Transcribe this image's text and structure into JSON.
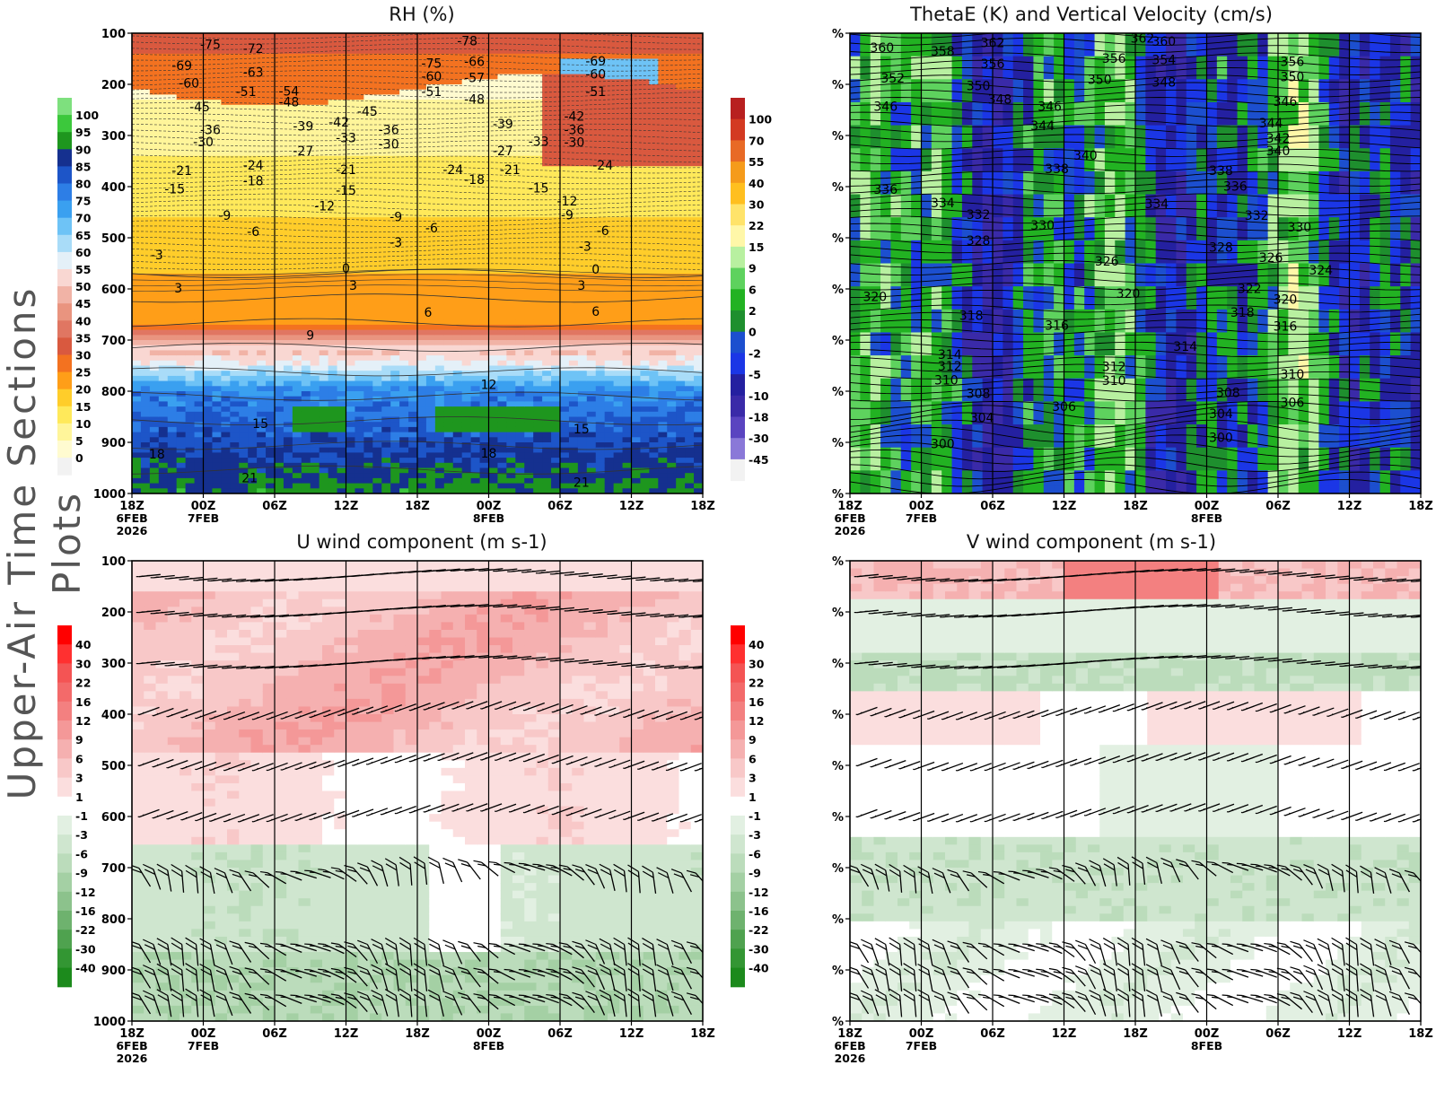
{
  "page": {
    "side_title": "Upper-Air Time Sections Plots"
  },
  "chart_data": [
    {
      "id": "rh",
      "type": "heatmap",
      "title": "RH (%)",
      "y_ticks": [
        "100",
        "200",
        "300",
        "400",
        "500",
        "600",
        "700",
        "800",
        "900",
        "1000"
      ],
      "x_ticks": [
        "18Z",
        "00Z",
        "06Z",
        "12Z",
        "18Z",
        "00Z",
        "06Z",
        "12Z",
        "18Z"
      ],
      "x_date_labels": [
        {
          "tick": 0,
          "lines": [
            "6FEB",
            "2026"
          ]
        },
        {
          "tick": 1,
          "lines": [
            "7FEB"
          ]
        },
        {
          "tick": 5,
          "lines": [
            "8FEB"
          ]
        }
      ],
      "colorbar": {
        "labels": [
          "100",
          "95",
          "90",
          "85",
          "80",
          "75",
          "70",
          "65",
          "60",
          "55",
          "50",
          "45",
          "40",
          "35",
          "30",
          "25",
          "20",
          "15",
          "10",
          "5",
          "0"
        ],
        "colors": [
          "#7ee07e",
          "#3cc83c",
          "#1e961e",
          "#15308f",
          "#1d55c8",
          "#2d7ee6",
          "#3aa0f0",
          "#6ec3f6",
          "#a9dcf8",
          "#e4f0f8",
          "#f9d7d2",
          "#f1b3a6",
          "#e9947f",
          "#e07662",
          "#d9593f",
          "#f37220",
          "#ff9e18",
          "#ffcd2a",
          "#ffe95a",
          "#fff59a",
          "#fffbd0",
          "#f2f2f2"
        ]
      },
      "contour_labels": [
        {
          "t": 0.7,
          "p": 163,
          "v": "-69"
        },
        {
          "t": 1.1,
          "p": 122,
          "v": "-75"
        },
        {
          "t": 1.7,
          "p": 130,
          "v": "-72"
        },
        {
          "t": 0.8,
          "p": 197,
          "v": "-60"
        },
        {
          "t": 1.7,
          "p": 176,
          "v": "-63"
        },
        {
          "t": 1.6,
          "p": 214,
          "v": "-51"
        },
        {
          "t": 2.2,
          "p": 213,
          "v": "-54"
        },
        {
          "t": 2.2,
          "p": 234,
          "v": "-48"
        },
        {
          "t": 0.95,
          "p": 244,
          "v": "-45"
        },
        {
          "t": 1.1,
          "p": 289,
          "v": "-36"
        },
        {
          "t": 1.0,
          "p": 312,
          "v": "-30"
        },
        {
          "t": 2.4,
          "p": 282,
          "v": "-39"
        },
        {
          "t": 2.9,
          "p": 274,
          "v": "-42"
        },
        {
          "t": 3.3,
          "p": 253,
          "v": "-45"
        },
        {
          "t": 3.0,
          "p": 304,
          "v": "-33"
        },
        {
          "t": 3.6,
          "p": 289,
          "v": "-36"
        },
        {
          "t": 3.6,
          "p": 317,
          "v": "-30"
        },
        {
          "t": 2.4,
          "p": 330,
          "v": "-27"
        },
        {
          "t": 0.7,
          "p": 368,
          "v": "-21"
        },
        {
          "t": 1.7,
          "p": 358,
          "v": "-24"
        },
        {
          "t": 1.7,
          "p": 389,
          "v": "-18"
        },
        {
          "t": 0.6,
          "p": 404,
          "v": "-15"
        },
        {
          "t": 3.0,
          "p": 367,
          "v": "-21"
        },
        {
          "t": 3.0,
          "p": 407,
          "v": "-15"
        },
        {
          "t": 2.7,
          "p": 438,
          "v": "-12"
        },
        {
          "t": 1.3,
          "p": 456,
          "v": "-9"
        },
        {
          "t": 1.7,
          "p": 488,
          "v": "-6"
        },
        {
          "t": 0.35,
          "p": 533,
          "v": "-3"
        },
        {
          "t": 3.7,
          "p": 459,
          "v": "-9"
        },
        {
          "t": 4.2,
          "p": 481,
          "v": "-6"
        },
        {
          "t": 3.7,
          "p": 509,
          "v": "-3"
        },
        {
          "t": 4.2,
          "p": 159,
          "v": "-75"
        },
        {
          "t": 4.7,
          "p": 115,
          "v": "-78"
        },
        {
          "t": 4.8,
          "p": 155,
          "v": "-66"
        },
        {
          "t": 4.2,
          "p": 184,
          "v": "-60"
        },
        {
          "t": 4.8,
          "p": 187,
          "v": "-57"
        },
        {
          "t": 4.2,
          "p": 214,
          "v": "-51"
        },
        {
          "t": 4.8,
          "p": 229,
          "v": "-48"
        },
        {
          "t": 4.5,
          "p": 367,
          "v": "-24"
        },
        {
          "t": 4.8,
          "p": 386,
          "v": "-18"
        },
        {
          "t": 5.2,
          "p": 277,
          "v": "-39"
        },
        {
          "t": 5.2,
          "p": 330,
          "v": "-27"
        },
        {
          "t": 5.3,
          "p": 367,
          "v": "-21"
        },
        {
          "t": 5.7,
          "p": 311,
          "v": "-33"
        },
        {
          "t": 5.7,
          "p": 403,
          "v": "-15"
        },
        {
          "t": 6.1,
          "p": 428,
          "v": "-12"
        },
        {
          "t": 6.1,
          "p": 455,
          "v": "-9"
        },
        {
          "t": 6.2,
          "p": 262,
          "v": "-42"
        },
        {
          "t": 6.2,
          "p": 289,
          "v": "-36"
        },
        {
          "t": 6.2,
          "p": 313,
          "v": "-30"
        },
        {
          "t": 6.6,
          "p": 358,
          "v": "-24"
        },
        {
          "t": 6.5,
          "p": 154,
          "v": "-69"
        },
        {
          "t": 6.5,
          "p": 180,
          "v": "-60"
        },
        {
          "t": 6.5,
          "p": 214,
          "v": "-51"
        },
        {
          "t": 6.6,
          "p": 486,
          "v": "-6"
        },
        {
          "t": 6.35,
          "p": 517,
          "v": "-3"
        },
        {
          "t": 6.5,
          "p": 561,
          "v": "0"
        },
        {
          "t": 3.0,
          "p": 560,
          "v": "0"
        },
        {
          "t": 0.65,
          "p": 598,
          "v": "3"
        },
        {
          "t": 3.1,
          "p": 593,
          "v": "3"
        },
        {
          "t": 6.3,
          "p": 593,
          "v": "3"
        },
        {
          "t": 4.15,
          "p": 646,
          "v": "6"
        },
        {
          "t": 6.5,
          "p": 644,
          "v": "6"
        },
        {
          "t": 2.5,
          "p": 690,
          "v": "9"
        },
        {
          "t": 5.0,
          "p": 787,
          "v": "12"
        },
        {
          "t": 1.8,
          "p": 863,
          "v": "15"
        },
        {
          "t": 6.3,
          "p": 874,
          "v": "15"
        },
        {
          "t": 0.35,
          "p": 923,
          "v": "18"
        },
        {
          "t": 5.0,
          "p": 921,
          "v": "18"
        },
        {
          "t": 1.65,
          "p": 969,
          "v": "21"
        },
        {
          "t": 6.3,
          "p": 978,
          "v": "21"
        }
      ]
    },
    {
      "id": "thetae",
      "type": "heatmap",
      "title": "ThetaE (K) and Vertical Velocity (cm/s)",
      "y_tick_label": "%",
      "x_ticks": [
        "18Z",
        "00Z",
        "06Z",
        "12Z",
        "18Z",
        "00Z",
        "06Z",
        "12Z",
        "18Z"
      ],
      "x_date_labels": [
        {
          "tick": 0,
          "lines": [
            "6FEB",
            "2026"
          ]
        },
        {
          "tick": 1,
          "lines": [
            "7FEB"
          ]
        },
        {
          "tick": 5,
          "lines": [
            "8FEB"
          ]
        }
      ],
      "colorbar": {
        "labels": [
          "100",
          "70",
          "55",
          "40",
          "30",
          "22",
          "15",
          "9",
          "6",
          "2",
          "0",
          "-2",
          "-5",
          "-10",
          "-18",
          "-30",
          "-45"
        ],
        "colors": [
          "#b82020",
          "#d33a22",
          "#e86a26",
          "#f59b1b",
          "#ffbf1f",
          "#ffe36a",
          "#fff7a8",
          "#b8f0a0",
          "#5ed25e",
          "#22b222",
          "#1e8f2e",
          "#1c4fcf",
          "#1b36e6",
          "#2420a0",
          "#3a2aa8",
          "#5a44c0",
          "#8a78d8",
          "#f2f2f2"
        ]
      },
      "contour_labels": [
        {
          "t": 0.45,
          "p": 128,
          "v": "360"
        },
        {
          "t": 1.3,
          "p": 135,
          "v": "358"
        },
        {
          "t": 2.0,
          "p": 118,
          "v": "362"
        },
        {
          "t": 2.0,
          "p": 160,
          "v": "356"
        },
        {
          "t": 0.6,
          "p": 188,
          "v": "352"
        },
        {
          "t": 1.8,
          "p": 203,
          "v": "350"
        },
        {
          "t": 2.1,
          "p": 229,
          "v": "348"
        },
        {
          "t": 0.5,
          "p": 243,
          "v": "346"
        },
        {
          "t": 2.8,
          "p": 243,
          "v": "346"
        },
        {
          "t": 2.7,
          "p": 281,
          "v": "344"
        },
        {
          "t": 4.1,
          "p": 110,
          "v": "362"
        },
        {
          "t": 4.4,
          "p": 116,
          "v": "360"
        },
        {
          "t": 4.4,
          "p": 152,
          "v": "354"
        },
        {
          "t": 4.4,
          "p": 196,
          "v": "348"
        },
        {
          "t": 3.7,
          "p": 149,
          "v": "356"
        },
        {
          "t": 3.5,
          "p": 190,
          "v": "350"
        },
        {
          "t": 6.2,
          "p": 155,
          "v": "356"
        },
        {
          "t": 6.2,
          "p": 185,
          "v": "350"
        },
        {
          "t": 6.1,
          "p": 233,
          "v": "346"
        },
        {
          "t": 5.9,
          "p": 275,
          "v": "344"
        },
        {
          "t": 6.0,
          "p": 305,
          "v": "342"
        },
        {
          "t": 6.0,
          "p": 330,
          "v": "340"
        },
        {
          "t": 3.3,
          "p": 339,
          "v": "340"
        },
        {
          "t": 2.9,
          "p": 365,
          "v": "338"
        },
        {
          "t": 5.2,
          "p": 368,
          "v": "338"
        },
        {
          "t": 5.4,
          "p": 399,
          "v": "336"
        },
        {
          "t": 0.5,
          "p": 405,
          "v": "336"
        },
        {
          "t": 1.3,
          "p": 432,
          "v": "334"
        },
        {
          "t": 1.8,
          "p": 454,
          "v": "332"
        },
        {
          "t": 2.7,
          "p": 475,
          "v": "330"
        },
        {
          "t": 4.3,
          "p": 433,
          "v": "334"
        },
        {
          "t": 5.7,
          "p": 456,
          "v": "332"
        },
        {
          "t": 6.3,
          "p": 479,
          "v": "330"
        },
        {
          "t": 1.8,
          "p": 505,
          "v": "328"
        },
        {
          "t": 3.6,
          "p": 546,
          "v": "326"
        },
        {
          "t": 5.2,
          "p": 518,
          "v": "328"
        },
        {
          "t": 5.9,
          "p": 539,
          "v": "326"
        },
        {
          "t": 6.6,
          "p": 563,
          "v": "324"
        },
        {
          "t": 5.6,
          "p": 599,
          "v": "322"
        },
        {
          "t": 0.35,
          "p": 615,
          "v": "320"
        },
        {
          "t": 3.9,
          "p": 609,
          "v": "320"
        },
        {
          "t": 6.1,
          "p": 620,
          "v": "320"
        },
        {
          "t": 1.7,
          "p": 652,
          "v": "318"
        },
        {
          "t": 5.5,
          "p": 646,
          "v": "318"
        },
        {
          "t": 2.9,
          "p": 671,
          "v": "316"
        },
        {
          "t": 6.1,
          "p": 673,
          "v": "316"
        },
        {
          "t": 4.7,
          "p": 712,
          "v": "314"
        },
        {
          "t": 1.4,
          "p": 728,
          "v": "314"
        },
        {
          "t": 1.4,
          "p": 751,
          "v": "312"
        },
        {
          "t": 3.7,
          "p": 752,
          "v": "312"
        },
        {
          "t": 1.35,
          "p": 778,
          "v": "310"
        },
        {
          "t": 3.7,
          "p": 779,
          "v": "310"
        },
        {
          "t": 6.2,
          "p": 767,
          "v": "310"
        },
        {
          "t": 1.8,
          "p": 804,
          "v": "308"
        },
        {
          "t": 5.3,
          "p": 803,
          "v": "308"
        },
        {
          "t": 3.0,
          "p": 830,
          "v": "306"
        },
        {
          "t": 6.2,
          "p": 822,
          "v": "306"
        },
        {
          "t": 1.85,
          "p": 852,
          "v": "304"
        },
        {
          "t": 5.2,
          "p": 844,
          "v": "304"
        },
        {
          "t": 1.3,
          "p": 903,
          "v": "300"
        },
        {
          "t": 5.2,
          "p": 890,
          "v": "300"
        }
      ]
    },
    {
      "id": "uwind",
      "type": "heatmap",
      "title": "U wind component (m s-1)",
      "y_ticks": [
        "100",
        "200",
        "300",
        "400",
        "500",
        "600",
        "700",
        "800",
        "900",
        "1000"
      ],
      "x_ticks": [
        "18Z",
        "00Z",
        "06Z",
        "12Z",
        "18Z",
        "00Z",
        "06Z",
        "12Z",
        "18Z"
      ],
      "x_date_labels": [
        {
          "tick": 0,
          "lines": [
            "6FEB",
            "2026"
          ]
        },
        {
          "tick": 1,
          "lines": [
            "7FEB"
          ]
        },
        {
          "tick": 5,
          "lines": [
            "8FEB"
          ]
        }
      ],
      "colorbar": {
        "labels": [
          "40",
          "30",
          "22",
          "16",
          "12",
          "9",
          "6",
          "3",
          "1",
          "-1",
          "-3",
          "-6",
          "-9",
          "-12",
          "-16",
          "-22",
          "-30",
          "-40"
        ],
        "colors": [
          "#ff0000",
          "#ff3030",
          "#f45454",
          "#f36a6a",
          "#f38080",
          "#f49898",
          "#f5b0b0",
          "#f8c8c8",
          "#fbdede",
          "#ffffff",
          "#e2f0e2",
          "#cfe6cf",
          "#bbdcbb",
          "#a4d0a4",
          "#8cc28c",
          "#6eb26e",
          "#4fa24f",
          "#339633",
          "#1c8a1c"
        ]
      }
    },
    {
      "id": "vwind",
      "type": "heatmap",
      "title": "V wind component (m s-1)",
      "y_tick_label": "%",
      "x_ticks": [
        "18Z",
        "00Z",
        "06Z",
        "12Z",
        "18Z",
        "00Z",
        "06Z",
        "12Z",
        "18Z"
      ],
      "x_date_labels": [
        {
          "tick": 0,
          "lines": [
            "6FEB",
            "2026"
          ]
        },
        {
          "tick": 1,
          "lines": [
            "7FEB"
          ]
        },
        {
          "tick": 5,
          "lines": [
            "8FEB"
          ]
        }
      ],
      "colorbar": {
        "labels": [
          "40",
          "30",
          "22",
          "16",
          "12",
          "9",
          "6",
          "3",
          "1",
          "-1",
          "-3",
          "-6",
          "-9",
          "-12",
          "-16",
          "-22",
          "-30",
          "-40"
        ],
        "colors": [
          "#ff0000",
          "#ff3030",
          "#f45454",
          "#f36a6a",
          "#f38080",
          "#f49898",
          "#f5b0b0",
          "#f8c8c8",
          "#fbdede",
          "#ffffff",
          "#e2f0e2",
          "#cfe6cf",
          "#bbdcbb",
          "#a4d0a4",
          "#8cc28c",
          "#6eb26e",
          "#4fa24f",
          "#339633",
          "#1c8a1c"
        ]
      }
    }
  ]
}
